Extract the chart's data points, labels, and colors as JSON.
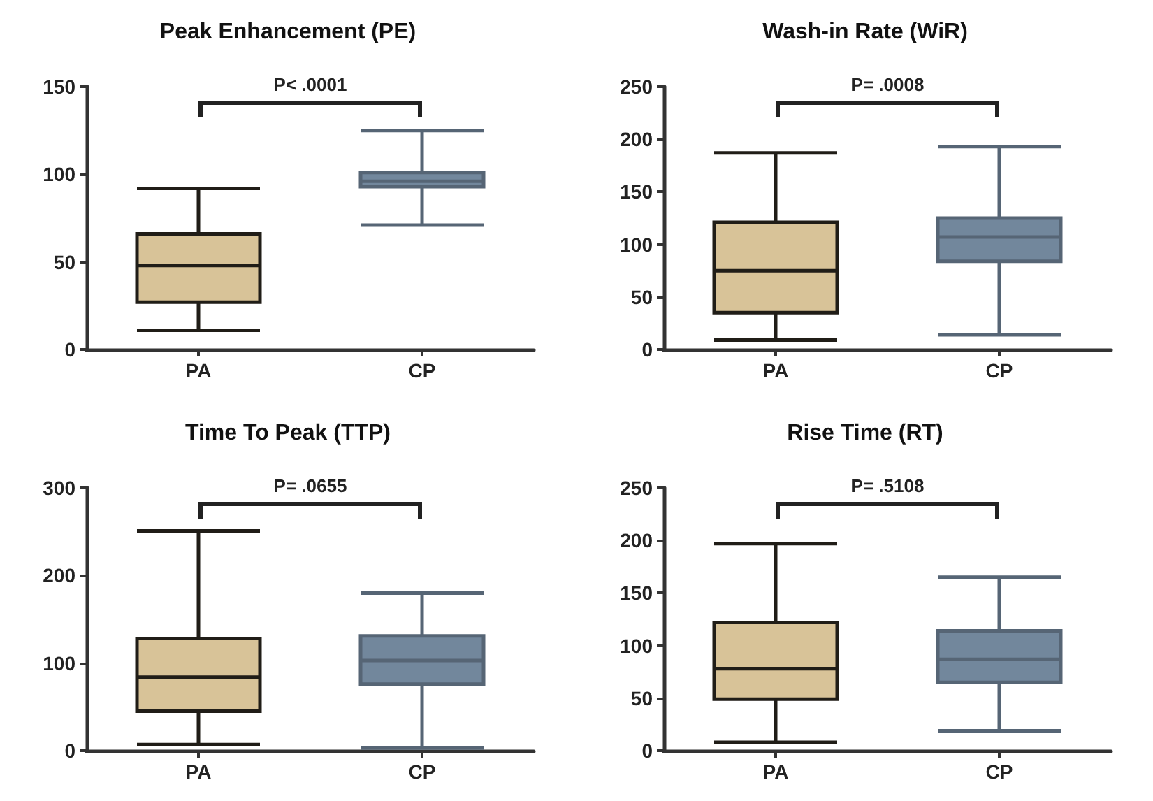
{
  "chart_data": [
    {
      "type": "box",
      "title": "Peak Enhancement (PE)",
      "categories": [
        "PA",
        "CP"
      ],
      "colors": [
        "#d8c398",
        "#72879c"
      ],
      "ylim": [
        0,
        150
      ],
      "yticks": [
        0,
        50,
        100,
        150
      ],
      "grid": false,
      "annotations": [
        "P< .0001"
      ],
      "boxes": [
        {
          "low": 11,
          "q1": 27,
          "median": 48,
          "q3": 66,
          "high": 92
        },
        {
          "low": 71,
          "q1": 93,
          "median": 96,
          "q3": 101,
          "high": 125
        }
      ]
    },
    {
      "type": "box",
      "title": "Wash-in Rate (WiR)",
      "categories": [
        "PA",
        "CP"
      ],
      "colors": [
        "#d8c398",
        "#72879c"
      ],
      "ylim": [
        0,
        250
      ],
      "yticks": [
        0,
        50,
        100,
        150,
        200,
        250
      ],
      "grid": false,
      "annotations": [
        "P= .0008"
      ],
      "boxes": [
        {
          "low": 9,
          "q1": 35,
          "median": 75,
          "q3": 121,
          "high": 187
        },
        {
          "low": 14,
          "q1": 84,
          "median": 107,
          "q3": 125,
          "high": 193
        }
      ]
    },
    {
      "type": "box",
      "title": "Time To Peak (TTP)",
      "categories": [
        "PA",
        "CP"
      ],
      "colors": [
        "#d8c398",
        "#72879c"
      ],
      "ylim": [
        0,
        300
      ],
      "yticks": [
        0,
        100,
        200,
        300
      ],
      "grid": false,
      "annotations": [
        "P= .0655"
      ],
      "boxes": [
        {
          "low": 7,
          "q1": 45,
          "median": 84,
          "q3": 128,
          "high": 251
        },
        {
          "low": 3,
          "q1": 76,
          "median": 103,
          "q3": 131,
          "high": 180
        }
      ]
    },
    {
      "type": "box",
      "title": "Rise Time (RT)",
      "categories": [
        "PA",
        "CP"
      ],
      "colors": [
        "#d8c398",
        "#72879c"
      ],
      "ylim": [
        0,
        250
      ],
      "yticks": [
        0,
        50,
        100,
        150,
        200,
        250
      ],
      "grid": false,
      "annotations": [
        "P= .5108"
      ],
      "boxes": [
        {
          "low": 8,
          "q1": 49,
          "median": 78,
          "q3": 122,
          "high": 197
        },
        {
          "low": 19,
          "q1": 65,
          "median": 87,
          "q3": 114,
          "high": 165
        }
      ]
    }
  ]
}
